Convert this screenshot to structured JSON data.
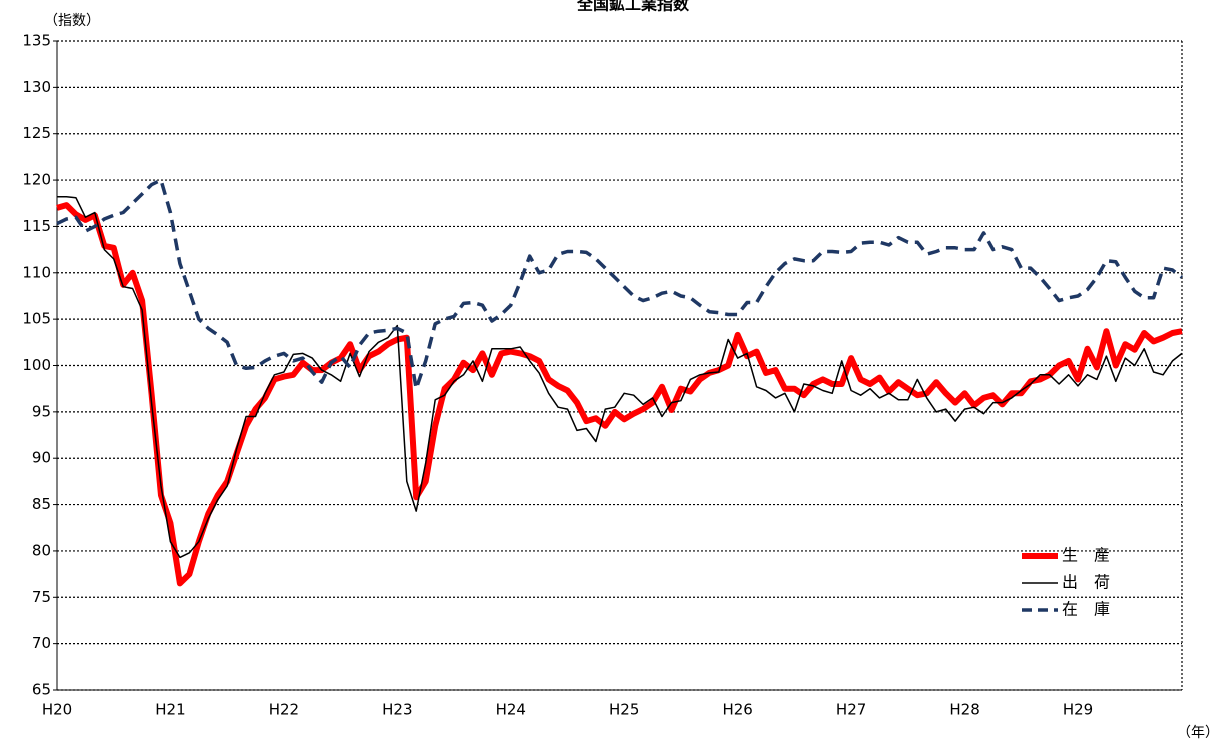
{
  "chart_data": {
    "type": "line",
    "title": "全国鉱工業指数",
    "y_label": "（指数）",
    "x_label": "（年）",
    "categories": [
      "H20",
      null,
      null,
      null,
      null,
      null,
      null,
      null,
      null,
      null,
      null,
      null,
      "H21",
      null,
      null,
      null,
      null,
      null,
      null,
      null,
      null,
      null,
      null,
      null,
      "H22",
      null,
      null,
      null,
      null,
      null,
      null,
      null,
      null,
      null,
      null,
      null,
      "H23",
      null,
      null,
      null,
      null,
      null,
      null,
      null,
      null,
      null,
      null,
      null,
      "H24",
      null,
      null,
      null,
      null,
      null,
      null,
      null,
      null,
      null,
      null,
      null,
      "H25",
      null,
      null,
      null,
      null,
      null,
      null,
      null,
      null,
      null,
      null,
      null,
      "H26",
      null,
      null,
      null,
      null,
      null,
      null,
      null,
      null,
      null,
      null,
      null,
      "H27",
      null,
      null,
      null,
      null,
      null,
      null,
      null,
      null,
      null,
      null,
      null,
      "H28",
      null,
      null,
      null,
      null,
      null,
      null,
      null,
      null,
      null,
      null,
      null,
      "H29",
      null,
      null,
      null,
      null,
      null,
      null,
      null,
      null,
      null,
      null,
      null
    ],
    "series": [
      {
        "name": "生　産",
        "color": "#ff0000",
        "line_width": 6,
        "line_style": "solid",
        "values": [
          117,
          117.3,
          116.3,
          115.7,
          116.2,
          112.9,
          112.7,
          108.7,
          110,
          107,
          97,
          86,
          83,
          76.5,
          77.5,
          81,
          84,
          86,
          87.5,
          90.5,
          93.5,
          95.3,
          96.5,
          98.5,
          98.8,
          99,
          100.3,
          99.5,
          99.5,
          100.3,
          100.8,
          102.3,
          99.5,
          101,
          101.5,
          102.3,
          102.8,
          103,
          85.8,
          87.5,
          93.5,
          97.5,
          98.5,
          100.3,
          99.5,
          101.3,
          99,
          101.3,
          101.5,
          101.3,
          101,
          100.5,
          98.5,
          97.8,
          97.3,
          96,
          94,
          94.3,
          93.5,
          95,
          94.2,
          94.8,
          95.3,
          96,
          97.7,
          95.2,
          97.5,
          97.2,
          98.5,
          99.2,
          99.5,
          100,
          103.3,
          101,
          101.5,
          99.2,
          99.5,
          97.5,
          97.5,
          96.8,
          98,
          98.5,
          98,
          98,
          100.8,
          98.5,
          98,
          98.7,
          97.2,
          98.2,
          97.5,
          96.8,
          97,
          98.2,
          97,
          96,
          97,
          95.7,
          96.5,
          96.8,
          95.8,
          97,
          97,
          98.3,
          98.5,
          99,
          100,
          100.5,
          98.5,
          101.8,
          99.8,
          103.7,
          100,
          102.3,
          101.7,
          103.5,
          102.6,
          103,
          103.5,
          103.7
        ]
      },
      {
        "name": "出　荷",
        "color": "#000000",
        "line_width": 1.5,
        "line_style": "solid",
        "values": [
          118.2,
          118.2,
          118.1,
          116,
          116.5,
          112.5,
          111.5,
          108.5,
          108.3,
          106,
          96,
          87,
          81,
          79.3,
          79.8,
          81,
          83.5,
          85.5,
          87,
          91,
          94.5,
          94.5,
          97,
          99,
          99.3,
          101.2,
          101.3,
          100.8,
          99.5,
          99,
          98.3,
          101.3,
          98.8,
          101.5,
          102.5,
          103,
          104.3,
          87.5,
          84.3,
          89.5,
          96.3,
          96.8,
          98.3,
          99,
          100.5,
          98.3,
          101.8,
          101.8,
          101.8,
          102,
          100.5,
          99.2,
          97,
          95.5,
          95.3,
          93,
          93.2,
          91.8,
          95.3,
          95.5,
          97,
          96.8,
          95.8,
          96.5,
          94.5,
          96,
          96.2,
          98.5,
          99,
          99.2,
          99.3,
          102.8,
          100.8,
          101.3,
          97.7,
          97.3,
          96.5,
          97,
          95,
          98,
          97.8,
          97.3,
          97,
          100.5,
          97.3,
          96.8,
          97.5,
          96.5,
          97,
          96.3,
          96.3,
          98.5,
          96.5,
          95,
          95.3,
          94,
          95.3,
          95.5,
          94.8,
          96,
          96,
          96.5,
          97.3,
          98,
          99,
          99,
          98,
          99,
          97.8,
          99,
          98.5,
          101,
          98.3,
          100.8,
          100,
          101.8,
          99.3,
          99,
          100.5,
          101.3
        ]
      },
      {
        "name": "在　庫",
        "color": "#1f3864",
        "line_width": 3.5,
        "line_style": "dashed",
        "values": [
          115.3,
          115.8,
          116,
          114.5,
          115,
          115.8,
          116.2,
          116.5,
          117.5,
          118.5,
          119.5,
          120,
          116.5,
          111,
          108,
          105,
          104,
          103.3,
          102.5,
          100,
          99.7,
          99.8,
          100.5,
          101,
          101.3,
          100.5,
          100.8,
          99.3,
          98.2,
          100.3,
          101,
          99.8,
          102.2,
          103.5,
          103.7,
          103.8,
          104,
          103.5,
          97.5,
          100.5,
          104.5,
          105,
          105.3,
          106.7,
          106.8,
          106.5,
          104.8,
          105.5,
          106.5,
          109,
          111.8,
          110,
          110.3,
          112,
          112.3,
          112.3,
          112.2,
          111.5,
          110.5,
          109.5,
          108.5,
          107.5,
          107,
          107.3,
          107.8,
          108,
          107.5,
          107.3,
          106.5,
          105.8,
          105.7,
          105.5,
          105.5,
          106.8,
          106.8,
          108.5,
          110,
          111,
          111.5,
          111.3,
          111.3,
          112.3,
          112.3,
          112.2,
          112.3,
          113.2,
          113.3,
          113.3,
          113,
          113.8,
          113.3,
          113.3,
          112,
          112.3,
          112.7,
          112.7,
          112.5,
          112.5,
          114.3,
          112.5,
          112.8,
          112.5,
          110.5,
          110.5,
          109.5,
          108.3,
          107,
          107.3,
          107.5,
          108.2,
          109.5,
          111.3,
          111.2,
          109.5,
          108,
          107.3,
          107.3,
          110.5,
          110.3,
          109.5
        ]
      }
    ],
    "ylim": [
      65,
      135
    ],
    "yticks": [
      65,
      70,
      75,
      80,
      85,
      90,
      95,
      100,
      105,
      110,
      115,
      120,
      125,
      130,
      135
    ],
    "grid": true,
    "legend": "lower right"
  }
}
